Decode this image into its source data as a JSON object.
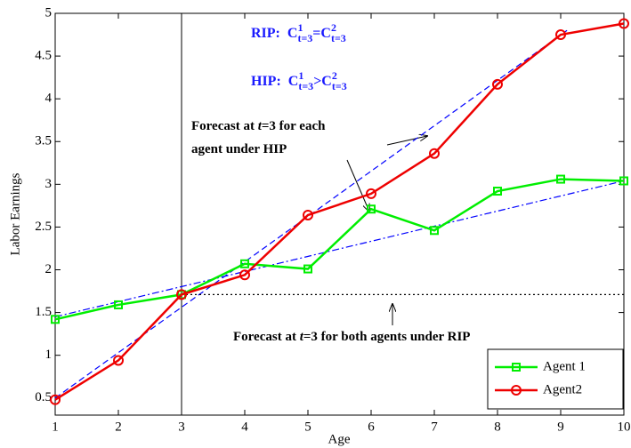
{
  "chart_data": {
    "type": "line",
    "x_label": "Age",
    "y_label": "Labor Earnings",
    "x": [
      1,
      2,
      3,
      4,
      5,
      6,
      7,
      8,
      9,
      10
    ],
    "series": [
      {
        "name": "Agent 1",
        "color": "#00ee00",
        "marker": "square",
        "values": [
          1.42,
          1.59,
          1.71,
          2.07,
          2.01,
          2.71,
          2.46,
          2.92,
          3.06,
          3.04
        ]
      },
      {
        "name": "Agent2",
        "color": "#ee0000",
        "marker": "circle",
        "values": [
          0.48,
          0.94,
          1.71,
          1.94,
          2.64,
          2.89,
          3.36,
          4.17,
          4.75,
          4.88
        ]
      }
    ],
    "forecast_lines": [
      {
        "x": [
          1,
          9.1
        ],
        "values": [
          0.5,
          4.8
        ],
        "color": "#0000ff",
        "style": "dashed"
      },
      {
        "x": [
          1,
          10
        ],
        "values": [
          1.45,
          3.04
        ],
        "color": "#0000ff",
        "style": "dashdot"
      },
      {
        "x": [
          3,
          10
        ],
        "values": [
          1.71,
          1.71
        ],
        "color": "#000000",
        "style": "dotted"
      }
    ],
    "vline": 3,
    "xlim": [
      1,
      10
    ],
    "ylim": [
      0.3,
      5
    ],
    "xticks": [
      1,
      2,
      3,
      4,
      5,
      6,
      7,
      8,
      9,
      10
    ],
    "yticks": [
      0.5,
      1,
      1.5,
      2,
      2.5,
      3,
      3.5,
      4,
      4.5,
      5
    ],
    "legend": "lower right",
    "annotations": {
      "rip": [
        "RIP:",
        "C",
        "1",
        "t=3",
        "=C",
        "2",
        "t=3"
      ],
      "hip": [
        "HIP:",
        "C",
        "1",
        "t=3",
        ">C",
        "2",
        "t=3"
      ],
      "hip_forecast": [
        [
          "Forecast at ",
          "t",
          "=3 for each"
        ],
        [
          "agent under HIP"
        ]
      ],
      "rip_forecast": [
        "Forecast at ",
        "t",
        "=3 for both agents under RIP"
      ]
    }
  }
}
